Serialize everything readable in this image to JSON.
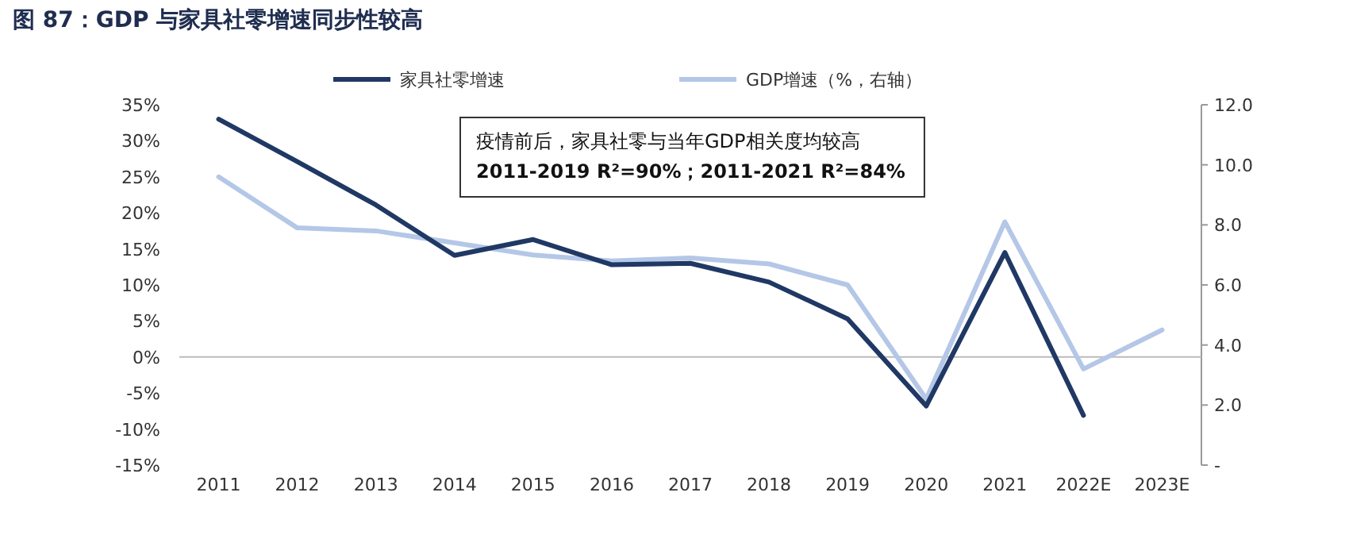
{
  "chart_data": {
    "type": "line",
    "title": "图 87：GDP 与家具社零增速同步性较高",
    "categories": [
      "2011",
      "2012",
      "2013",
      "2014",
      "2015",
      "2016",
      "2017",
      "2018",
      "2019",
      "2020",
      "2021",
      "2022E",
      "2023E"
    ],
    "series": [
      {
        "name": "家具社零增速",
        "color": "#203864",
        "values": [
          33.0,
          27.1,
          21.1,
          14.1,
          16.3,
          12.8,
          13.0,
          10.4,
          5.3,
          -6.8,
          14.5,
          -8.1,
          null
        ]
      },
      {
        "name": "GDP增速（%，右轴）",
        "color": "#b4c7e7",
        "axis": "y2",
        "values": [
          9.6,
          7.9,
          7.8,
          7.4,
          7.0,
          6.8,
          6.9,
          6.7,
          6.0,
          2.2,
          8.1,
          3.2,
          4.5
        ]
      }
    ],
    "ylim": [
      -15,
      35
    ],
    "yticks": [
      {
        "value": -15,
        "label": "-15%"
      },
      {
        "value": -10,
        "label": "-10%"
      },
      {
        "value": -5,
        "label": "-5%"
      },
      {
        "value": 0,
        "label": "0%"
      },
      {
        "value": 5,
        "label": "5%"
      },
      {
        "value": 10,
        "label": "10%"
      },
      {
        "value": 15,
        "label": "15%"
      },
      {
        "value": 20,
        "label": "20%"
      },
      {
        "value": 25,
        "label": "25%"
      },
      {
        "value": 30,
        "label": "30%"
      },
      {
        "value": 35,
        "label": "35%"
      }
    ],
    "y2lim": [
      0,
      12
    ],
    "y2ticks": [
      {
        "value": 0,
        "label": "-"
      },
      {
        "value": 2,
        "label": "2.0"
      },
      {
        "value": 4,
        "label": "4.0"
      },
      {
        "value": 6,
        "label": "6.0"
      },
      {
        "value": 8,
        "label": "8.0"
      },
      {
        "value": 10,
        "label": "10.0"
      },
      {
        "value": 12,
        "label": "12.0"
      }
    ],
    "annotations": [
      "疫情前后，家具社零与当年GDP相关度均较高",
      "2011-2019 R²=90%；2011-2021 R²=84%"
    ],
    "legend": "top"
  }
}
